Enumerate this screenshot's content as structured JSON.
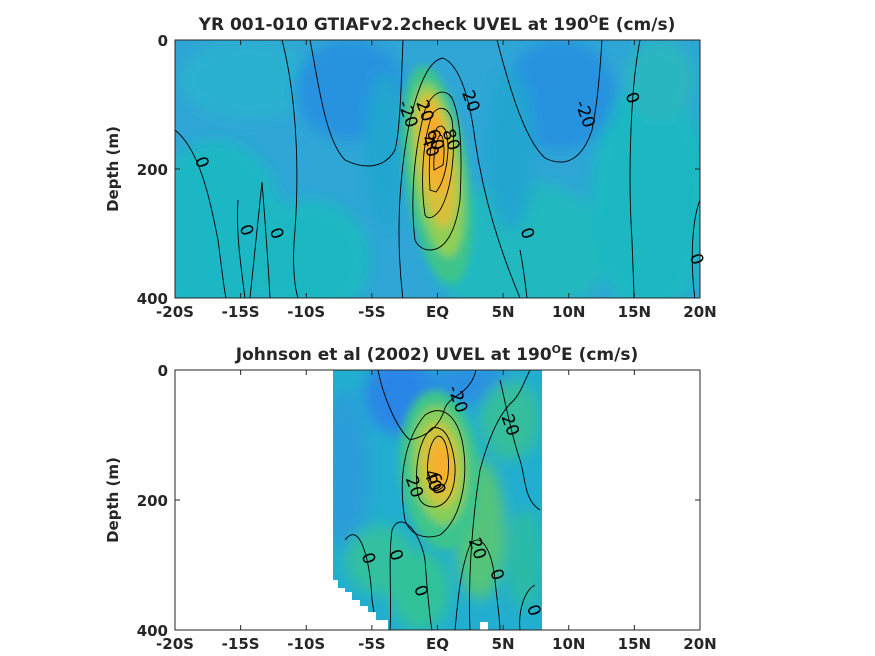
{
  "chart_data": [
    {
      "type": "heatmap",
      "title": "YR 001-010 GTIAFv2.2check UVEL at 190",
      "title_sup": "O",
      "title_tail": "E (cm/s)",
      "ylabel": "Depth (m)",
      "xlabel": "",
      "x_ticks": [
        "-20S",
        "-15S",
        "-10S",
        "-5S",
        "EQ",
        "5N",
        "10N",
        "15N",
        "20N"
      ],
      "y_ticks": [
        "0",
        "200",
        "400"
      ],
      "xlim": [
        -20,
        20
      ],
      "ylim": [
        0,
        400
      ],
      "contour_interval": 20,
      "jet_core": {
        "lat": 0,
        "depth": 150,
        "max_speed": 80
      },
      "contour_labels": [
        {
          "text": "-20",
          "lat": -2.3,
          "depth": 115
        },
        {
          "text": "-20",
          "lat": 11.2,
          "depth": 115
        },
        {
          "text": "20",
          "lat": 2.5,
          "depth": 95
        },
        {
          "text": "20",
          "lat": -1.0,
          "depth": 110
        },
        {
          "text": "40",
          "lat": -0.6,
          "depth": 165
        },
        {
          "text": "60",
          "lat": -0.2,
          "depth": 155
        },
        {
          "text": "80",
          "lat": 1.0,
          "depth": 155
        },
        {
          "text": "0",
          "lat": -18.0,
          "depth": 190
        },
        {
          "text": "0",
          "lat": -14.6,
          "depth": 295
        },
        {
          "text": "0",
          "lat": -12.3,
          "depth": 300
        },
        {
          "text": "0",
          "lat": 6.8,
          "depth": 300
        },
        {
          "text": "0",
          "lat": 14.8,
          "depth": 90
        },
        {
          "text": "0",
          "lat": 19.7,
          "depth": 340
        }
      ]
    },
    {
      "type": "heatmap",
      "title": "Johnson et al (2002) UVEL at 190",
      "title_sup": "O",
      "title_tail": "E (cm/s)",
      "ylabel": "Depth (m)",
      "xlabel": "",
      "x_ticks": [
        "-20S",
        "-15S",
        "-10S",
        "-5S",
        "EQ",
        "5N",
        "10N",
        "15N",
        "20N"
      ],
      "y_ticks": [
        "0",
        "200",
        "400"
      ],
      "xlim": [
        -20,
        20
      ],
      "ylim": [
        0,
        400
      ],
      "data_lat_range": [
        -8,
        8
      ],
      "contour_interval": 20,
      "jet_core": {
        "lat": 0,
        "depth": 150,
        "max_speed": 60
      },
      "contour_labels": [
        {
          "text": "-20",
          "lat": 1.5,
          "depth": 45
        },
        {
          "text": "20",
          "lat": 5.5,
          "depth": 85
        },
        {
          "text": "20",
          "lat": -1.8,
          "depth": 180
        },
        {
          "text": "40",
          "lat": -0.4,
          "depth": 170
        },
        {
          "text": "60",
          "lat": -0.1,
          "depth": 175
        },
        {
          "text": "20",
          "lat": 3.0,
          "depth": 275
        },
        {
          "text": "0",
          "lat": -5.3,
          "depth": 290
        },
        {
          "text": "0",
          "lat": -3.2,
          "depth": 285
        },
        {
          "text": "0",
          "lat": 4.5,
          "depth": 315
        },
        {
          "text": "0",
          "lat": -1.3,
          "depth": 340
        },
        {
          "text": "0",
          "lat": 7.3,
          "depth": 370
        }
      ]
    }
  ]
}
